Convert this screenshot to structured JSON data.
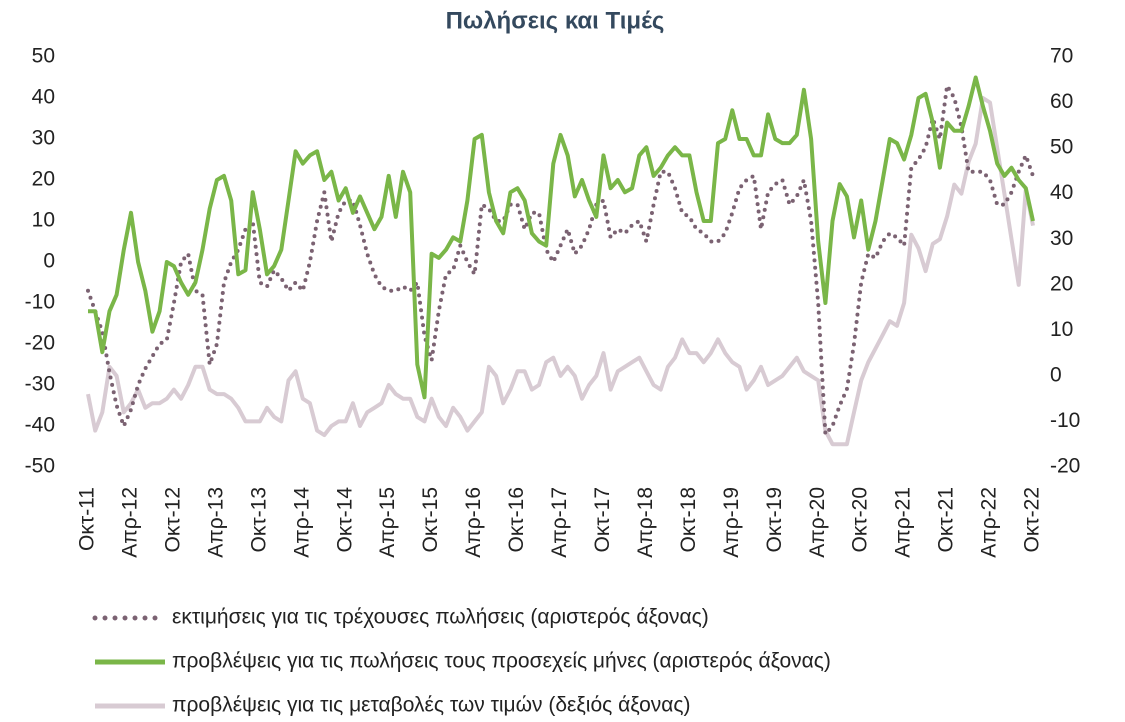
{
  "chart_data": {
    "type": "line",
    "title": "Πωλήσεις και Τιμές",
    "categories": [
      "Οκτ-11",
      null,
      null,
      null,
      null,
      null,
      "Απρ-12",
      null,
      null,
      null,
      null,
      null,
      "Οκτ-12",
      null,
      null,
      null,
      null,
      null,
      "Απρ-13",
      null,
      null,
      null,
      null,
      null,
      "Οκτ-13",
      null,
      null,
      null,
      null,
      null,
      "Απρ-14",
      null,
      null,
      null,
      null,
      null,
      "Οκτ-14",
      null,
      null,
      null,
      null,
      null,
      "Απρ-15",
      null,
      null,
      null,
      null,
      null,
      "Οκτ-15",
      null,
      null,
      null,
      null,
      null,
      "Απρ-16",
      null,
      null,
      null,
      null,
      null,
      "Οκτ-16",
      null,
      null,
      null,
      null,
      null,
      "Απρ-17",
      null,
      null,
      null,
      null,
      null,
      "Οκτ-17",
      null,
      null,
      null,
      null,
      null,
      "Απρ-18",
      null,
      null,
      null,
      null,
      null,
      "Οκτ-18",
      null,
      null,
      null,
      null,
      null,
      "Απρ-19",
      null,
      null,
      null,
      null,
      null,
      "Οκτ-19",
      null,
      null,
      null,
      null,
      null,
      "Απρ-20",
      null,
      null,
      null,
      null,
      null,
      "Οκτ-20",
      null,
      null,
      null,
      null,
      null,
      "Απρ-21",
      null,
      null,
      null,
      null,
      null,
      "Οκτ-21",
      null,
      null,
      null,
      null,
      null,
      "Απρ-22",
      null,
      null,
      null,
      null,
      null,
      "Οκτ-22"
    ],
    "series": [
      {
        "name": "εκτιμήσεις για τις τρέχουσες πωλήσεις (αριστερός άξονας)",
        "color": "#7b6272",
        "style": "dotted",
        "values": [
          -7,
          -12,
          -17,
          -27,
          -35,
          -40,
          -36,
          -30,
          -26,
          -23,
          -20,
          -19,
          -10,
          0,
          2,
          -7,
          -8,
          -25,
          -20,
          -5,
          0,
          3,
          8,
          10,
          -5,
          -6,
          -2,
          -4,
          -7,
          -5,
          -7,
          0,
          10,
          17,
          5,
          12,
          15,
          15,
          9,
          2,
          -3,
          -6,
          -7,
          -7,
          -6,
          -7,
          -5,
          -18,
          -24,
          -12,
          -3,
          -2,
          4,
          0,
          -3,
          14,
          13,
          10,
          10,
          14,
          14,
          8,
          12,
          12,
          3,
          0,
          4,
          8,
          2,
          4,
          8,
          14,
          15,
          6,
          8,
          7,
          9,
          10,
          5,
          14,
          22,
          22,
          18,
          12,
          11,
          8,
          7,
          5,
          5,
          7,
          12,
          18,
          20,
          21,
          8,
          17,
          19,
          20,
          14,
          16,
          20,
          10,
          -10,
          -42,
          -40,
          -35,
          -31,
          -20,
          -5,
          2,
          1,
          5,
          7,
          6,
          4,
          23,
          25,
          28,
          35,
          30,
          43,
          40,
          33,
          22,
          22,
          22,
          20,
          14,
          14,
          17,
          22,
          26,
          21
        ]
      },
      {
        "name": "προβλέψεις για τις πωλήσεις τους προσεχείς μήνες (αριστερός άξονας)",
        "color": "#7ab648",
        "style": "solid",
        "values": [
          -12,
          -12,
          -22,
          -12,
          -8,
          3,
          12,
          0,
          -7,
          -17,
          -12,
          0,
          -1,
          -5,
          -8,
          -5,
          3,
          13,
          20,
          21,
          15,
          -3,
          -2,
          17,
          8,
          -3,
          -1,
          3,
          15,
          27,
          24,
          26,
          27,
          20,
          22,
          15,
          18,
          12,
          16,
          12,
          8,
          11,
          21,
          11,
          22,
          17,
          -25,
          -33,
          2,
          1,
          3,
          6,
          5,
          15,
          30,
          31,
          17,
          10,
          7,
          17,
          18,
          15,
          7,
          5,
          4,
          24,
          31,
          26,
          16,
          20,
          15,
          11,
          26,
          18,
          20,
          17,
          18,
          26,
          28,
          21,
          23,
          26,
          28,
          26,
          26,
          17,
          10,
          10,
          29,
          30,
          37,
          30,
          30,
          26,
          26,
          36,
          30,
          29,
          29,
          31,
          42,
          30,
          5,
          -10,
          10,
          19,
          16,
          6,
          15,
          3,
          10,
          20,
          30,
          29,
          25,
          31,
          40,
          41,
          34,
          23,
          34,
          32,
          32,
          38,
          45,
          38,
          32,
          24,
          21,
          23,
          20,
          18,
          10
        ]
      },
      {
        "name": "προβλέψεις για τις μεταβολές των τιμών (δεξιός άξονας)",
        "color": "#d8cbd3",
        "style": "solid",
        "axis": "y2",
        "values": [
          -4,
          -12,
          -8,
          2,
          0,
          -8,
          -6,
          -3,
          -7,
          -6,
          -6,
          -5,
          -3,
          -5,
          -2,
          2,
          2,
          -3,
          -4,
          -4,
          -5,
          -7,
          -10,
          -10,
          -10,
          -7,
          -9,
          -10,
          -1,
          1,
          -5,
          -6,
          -12,
          -13,
          -11,
          -10,
          -10,
          -6,
          -11,
          -8,
          -7,
          -6,
          -2,
          -4,
          -5,
          -5,
          -9,
          -10,
          -5,
          -9,
          -11,
          -7,
          -9,
          -12,
          -10,
          -8,
          2,
          0,
          -6,
          -3,
          1,
          1,
          -3,
          -2,
          3,
          4,
          0,
          2,
          0,
          -5,
          -2,
          0,
          5,
          -3,
          1,
          2,
          3,
          4,
          1,
          -2,
          -3,
          2,
          4,
          8,
          5,
          5,
          3,
          5,
          8,
          5,
          3,
          2,
          -3,
          -1,
          2,
          -2,
          -1,
          0,
          2,
          4,
          1,
          0,
          -1,
          -12,
          -15,
          -15,
          -15,
          -8,
          -1,
          3,
          6,
          9,
          12,
          11,
          16,
          31,
          28,
          23,
          29,
          30,
          35,
          42,
          40,
          47,
          51,
          61,
          60,
          50,
          40,
          30,
          20,
          41,
          33
        ]
      }
    ],
    "ylim": [
      -50,
      50
    ],
    "yticks": [
      50,
      40,
      30,
      20,
      10,
      0,
      -10,
      -20,
      -30,
      -40,
      -50
    ],
    "y2lim": [
      -20,
      70
    ],
    "y2ticks": [
      70,
      60,
      50,
      40,
      30,
      20,
      10,
      0,
      -10,
      -20
    ],
    "grid": false,
    "legend": "bottom"
  }
}
